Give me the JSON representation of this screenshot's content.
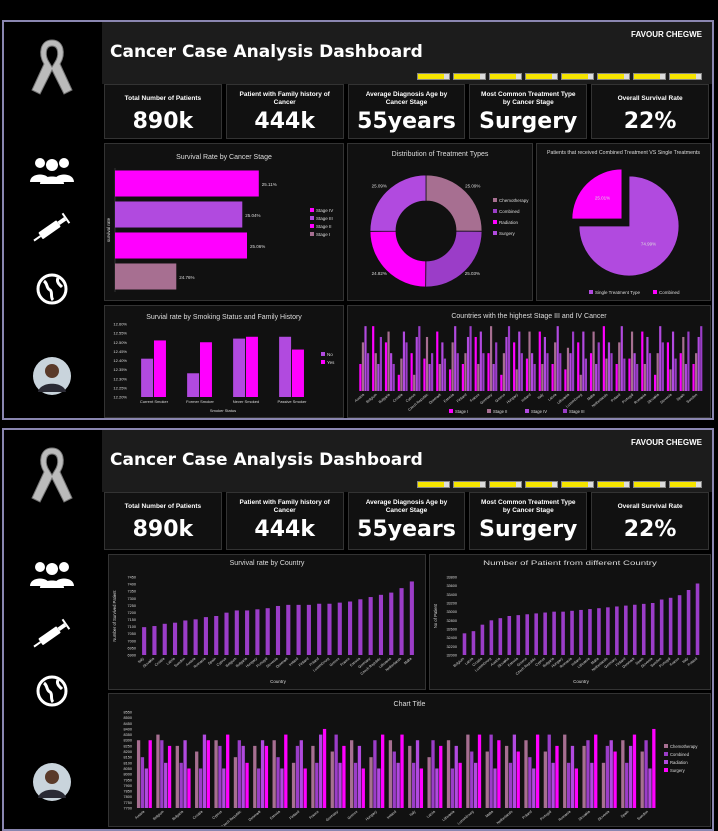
{
  "app": {
    "title": "Cancer Case Analysis Dashboard",
    "author": "FAVOUR CHEGWE"
  },
  "sidebar": {
    "icons": [
      "ribbon-icon",
      "people-icon",
      "syringe-icon",
      "globe-icon",
      "avatar"
    ]
  },
  "colors": {
    "accent": "#ff00ff",
    "purple": "#9b3dc8",
    "mauve": "#a76f91",
    "violet": "#b14adf",
    "background": "#000000",
    "panel": "#111111"
  },
  "kpis": [
    {
      "label": "Total Number of Patients",
      "value": "890k"
    },
    {
      "label": "Patient with Family history of Cancer",
      "value": "444k"
    },
    {
      "label": "Average Diagnosis Age by Cancer Stage",
      "value": "55years"
    },
    {
      "label": "Most Common Treatment Type by Cancer Stage",
      "value": "Surgery"
    },
    {
      "label": "Overall Survival Rate",
      "value": "22%"
    }
  ],
  "chart_data": [
    {
      "id": "stage",
      "type": "bar",
      "title": "Survival Rate by Cancer Stage",
      "orientation": "horizontal",
      "ylabel": "survival rate",
      "categories": [
        "Stage IV",
        "Stage III",
        "Stage II",
        "Stage I"
      ],
      "values": [
        25.11,
        25.04,
        25.06,
        24.76
      ],
      "labels": [
        "25.11%",
        "25.04%",
        "25.06%",
        "24.76%"
      ],
      "xlim": [
        24.5,
        25.2
      ],
      "legend": "right"
    },
    {
      "id": "treatment",
      "type": "pie",
      "donut": true,
      "title": "Distribution of Treatment Types",
      "categories": [
        "Chemotherapy",
        "Combined",
        "Radiation",
        "Surgery"
      ],
      "values": [
        25.09,
        25.03,
        24.82,
        25.09
      ],
      "labels": [
        "25.09%",
        "25.03%",
        "24.82%",
        "25.09%"
      ],
      "legend": "right"
    },
    {
      "id": "combined",
      "type": "pie",
      "title": "Patients that received Combined Treatment VS Single Treatments",
      "categories": [
        "Single Treatment Type",
        "Combined"
      ],
      "values": [
        74.99,
        25.01
      ],
      "labels": [
        "74.99%",
        "25.01%"
      ],
      "legend": "bottom"
    },
    {
      "id": "smoking",
      "type": "bar",
      "title": "Survial rate by Smoking Status and Family History",
      "xlabel": "Smoker Status",
      "categories": [
        "Current Smoker",
        "Former Smoker",
        "Never Smoked",
        "Passive Smoker"
      ],
      "series": [
        {
          "name": "No",
          "values": [
            12.41,
            12.33,
            12.52,
            12.53
          ]
        },
        {
          "name": "Yes",
          "values": [
            12.51,
            12.5,
            12.53,
            12.46
          ]
        }
      ],
      "yticks": [
        "12.20%",
        "12.25%",
        "12.30%",
        "12.35%",
        "12.40%",
        "12.45%",
        "12.50%",
        "12.55%",
        "12.60%"
      ],
      "ylim": [
        12.2,
        12.6
      ],
      "legend": "right"
    },
    {
      "id": "stage34",
      "type": "bar",
      "title": "Countries with the highest Stage III and IV Cancer",
      "categories": [
        "Austria",
        "Belgium",
        "Bulgaria",
        "Croatia",
        "Cyprus",
        "Czech Republic",
        "Denmark",
        "Estonia",
        "Finland",
        "France",
        "Germany",
        "Greece",
        "Hungary",
        "Ireland",
        "Italy",
        "Latvia",
        "Lithuania",
        "Luxembourg",
        "Malta",
        "Netherlands",
        "Poland",
        "Portugal",
        "Romania",
        "Slovakia",
        "Slovenia",
        "Spain",
        "Sweden"
      ],
      "series": [
        {
          "name": "Stage I",
          "values": [
            7600,
            7950,
            7800,
            7500,
            7700,
            7650,
            7900,
            7550,
            7600,
            7850,
            7700,
            7500,
            7800,
            7650,
            7900,
            7600,
            7550,
            7800,
            7700,
            7950,
            7600,
            7650,
            7900,
            7500,
            7800,
            7700,
            7600
          ]
        },
        {
          "name": "Stage II",
          "values": [
            7800,
            7700,
            7900,
            7650,
            7500,
            7850,
            7600,
            7800,
            7700,
            7600,
            7950,
            7700,
            7550,
            7900,
            7600,
            7800,
            7750,
            7500,
            7900,
            7650,
            7800,
            7900,
            7600,
            7700,
            7550,
            7850,
            7700
          ]
        },
        {
          "name": "Stage IV",
          "values": [
            7950,
            7600,
            7700,
            7900,
            7850,
            7600,
            7800,
            7950,
            7850,
            7900,
            7600,
            7850,
            7900,
            7700,
            7850,
            7950,
            7700,
            7900,
            7600,
            7800,
            7950,
            7700,
            7850,
            7950,
            7900,
            7600,
            7850
          ]
        },
        {
          "name": "Stage III",
          "values": [
            7700,
            7850,
            7600,
            7800,
            7950,
            7700,
            7650,
            7700,
            7950,
            7700,
            7800,
            7950,
            7700,
            7600,
            7700,
            7700,
            7900,
            7650,
            7800,
            7700,
            7650,
            7600,
            7700,
            7800,
            7650,
            7900,
            7950
          ]
        }
      ],
      "legend": "bottom"
    },
    {
      "id": "country_survival",
      "type": "bar",
      "title": "Survival rate by Country",
      "xlabel": "Country",
      "ylabel": "Number of Survived Patient",
      "categories": [
        "Italy",
        "Slovakia",
        "Croatia",
        "Latvia",
        "Sweden",
        "Austria",
        "Romania",
        "Spain",
        "Cyprus",
        "Belgium",
        "Bulgaria",
        "Hungary",
        "Portugal",
        "Slovenia",
        "Denmark",
        "Ireland",
        "Finland",
        "Poland",
        "Luxembourg",
        "Greece",
        "France",
        "Estonia",
        "Germany",
        "Czech Republic",
        "Lithuania",
        "Netherlands",
        "Malta"
      ],
      "values": [
        7150,
        7160,
        7180,
        7190,
        7210,
        7220,
        7240,
        7250,
        7280,
        7300,
        7300,
        7310,
        7320,
        7340,
        7350,
        7350,
        7350,
        7360,
        7360,
        7370,
        7380,
        7400,
        7420,
        7440,
        7460,
        7500,
        7560
      ],
      "yticks": [
        "6900",
        "6950",
        "7000",
        "7050",
        "7100",
        "7150",
        "7200",
        "7250",
        "7300",
        "7350",
        "7400",
        "7450"
      ],
      "ylim": [
        6900,
        7600
      ]
    },
    {
      "id": "country_patients",
      "type": "bar",
      "title": "Number of Patient from different Country",
      "xlabel": "Country",
      "ylabel": "No of Patient",
      "categories": [
        "Belgium",
        "Latvia",
        "Croatia",
        "Luxembourg",
        "Austria",
        "Slovakia",
        "Estonia",
        "Greece",
        "Czech Republic",
        "Cyprus",
        "Bulgaria",
        "Hungary",
        "Romania",
        "Ireland",
        "Lithuania",
        "Malta",
        "Netherlands",
        "Germany",
        "Finland",
        "Denmark",
        "Spain",
        "Slovenia",
        "Sweden",
        "Portugal",
        "France",
        "Italy",
        "Poland"
      ],
      "values": [
        32500,
        32550,
        32700,
        32800,
        32850,
        32900,
        32920,
        32940,
        32960,
        32980,
        33000,
        33000,
        33020,
        33040,
        33060,
        33080,
        33100,
        33120,
        33140,
        33160,
        33180,
        33200,
        33280,
        33320,
        33380,
        33500,
        33650
      ],
      "yticks": [
        "32000",
        "32200",
        "32400",
        "32600",
        "32800",
        "33000",
        "33200",
        "33400",
        "33600",
        "33800"
      ],
      "ylim": [
        32000,
        33800
      ]
    },
    {
      "id": "chart_title",
      "type": "bar",
      "title": "Chart Title",
      "categories": [
        "Austria",
        "Belgium",
        "Bulgaria",
        "Croatia",
        "Cyprus",
        "Czech Republic",
        "Denmark",
        "Estonia",
        "Finland",
        "France",
        "Germany",
        "Greece",
        "Hungary",
        "Ireland",
        "Italy",
        "Latvia",
        "Lithuania",
        "Luxembourg",
        "Malta",
        "Netherlands",
        "Poland",
        "Portugal",
        "Romania",
        "Slovakia",
        "Slovenia",
        "Spain",
        "Sweden"
      ],
      "series": [
        {
          "name": "Chemotherapy",
          "values": [
            8300,
            8350,
            8250,
            8200,
            8300,
            8150,
            8250,
            8300,
            8100,
            8250,
            8200,
            8300,
            8150,
            8300,
            8250,
            8150,
            8300,
            8350,
            8200,
            8250,
            8300,
            8200,
            8350,
            8250,
            8100,
            8300,
            8200
          ]
        },
        {
          "name": "Combined",
          "values": [
            8150,
            8300,
            8100,
            8050,
            8250,
            8300,
            8050,
            8150,
            8250,
            8100,
            8350,
            8100,
            8300,
            8200,
            8100,
            8300,
            8050,
            8200,
            8350,
            8100,
            8150,
            8350,
            8100,
            8300,
            8250,
            8100,
            8300
          ]
        },
        {
          "name": "Radiation",
          "values": [
            8050,
            8100,
            8300,
            8350,
            8050,
            8250,
            8300,
            8050,
            8300,
            8350,
            8100,
            8250,
            8050,
            8100,
            8300,
            8050,
            8250,
            8100,
            8050,
            8350,
            8050,
            8100,
            8250,
            8100,
            8300,
            8250,
            8050
          ]
        },
        {
          "name": "Surgery",
          "values": [
            8300,
            8250,
            8050,
            8300,
            8350,
            8100,
            8250,
            8350,
            8050,
            8400,
            8250,
            8050,
            8350,
            8350,
            8050,
            8250,
            8100,
            8350,
            8300,
            8200,
            8350,
            8250,
            8050,
            8350,
            8200,
            8350,
            8400
          ]
        }
      ],
      "yticks": [
        "7700",
        "7750",
        "7800",
        "7850",
        "7900",
        "7950",
        "8000",
        "8050",
        "8100",
        "8150",
        "8200",
        "8250",
        "8300",
        "8350",
        "8400",
        "8450",
        "8500",
        "8550"
      ],
      "ylim": [
        7700,
        8550
      ],
      "legend": "right"
    }
  ]
}
